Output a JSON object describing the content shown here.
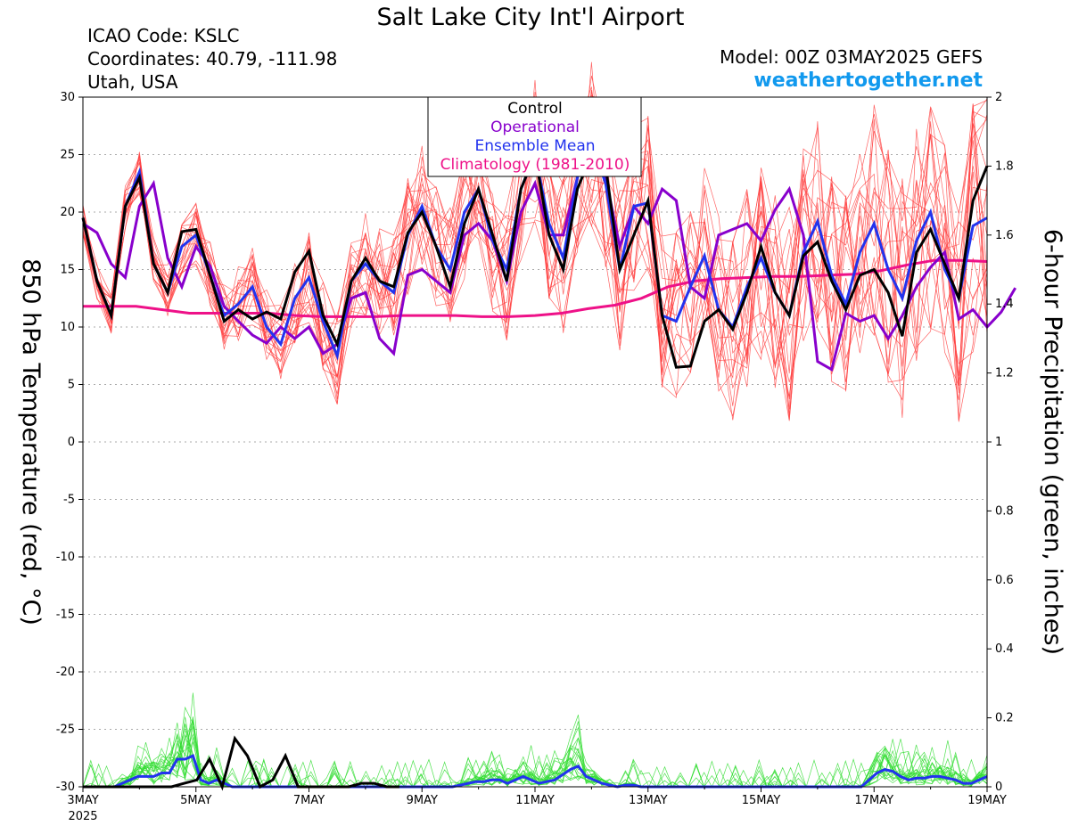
{
  "chart_data": {
    "type": "line",
    "title": "Salt Lake City Int'l Airport",
    "info": {
      "icao": "ICAO Code: KSLC",
      "coordinates": "Coordinates: 40.79, -111.98",
      "region": "Utah, USA",
      "model": "Model: 00Z 03MAY2025 GEFS",
      "site": "weathertogether.net"
    },
    "colors": {
      "members_temp": "#ff3b3b",
      "members_precip": "#33dd33",
      "control": "#000000",
      "operational": "#8800cc",
      "ensemble_mean": "#2233ee",
      "climatology": "#ee1188",
      "site": "#1199ee"
    },
    "y_left": {
      "label": "850 hPa Temperature (red, °C)",
      "range": [
        -30,
        30
      ],
      "ticks": [
        "30",
        "25",
        "20",
        "15",
        "10",
        "5",
        "0",
        "-5",
        "-10",
        "-15",
        "-20",
        "-25",
        "-30"
      ]
    },
    "y_right": {
      "label": "6-hour Precipitation (green, inches)",
      "range": [
        0,
        2
      ],
      "ticks": [
        "2",
        "1.8",
        "1.6",
        "1.4",
        "1.2",
        "1",
        "0.8",
        "0.6",
        "0.4",
        "0.2",
        "0"
      ]
    },
    "x_axis": {
      "range_days": [
        0,
        16
      ],
      "year_label": "2025",
      "ticks": [
        {
          "day": 0,
          "label": "3MAY"
        },
        {
          "day": 2,
          "label": "5MAY"
        },
        {
          "day": 4,
          "label": "7MAY"
        },
        {
          "day": 6,
          "label": "9MAY"
        },
        {
          "day": 8,
          "label": "11MAY"
        },
        {
          "day": 10,
          "label": "13MAY"
        },
        {
          "day": 12,
          "label": "15MAY"
        },
        {
          "day": 14,
          "label": "17MAY"
        },
        {
          "day": 16,
          "label": "19MAY"
        }
      ]
    },
    "legend": {
      "placement": "top-center",
      "entries": [
        "Control",
        "Operational",
        "Ensemble Mean",
        "Climatology (1981-2010)"
      ]
    },
    "grid": "horizontal dotted",
    "series_temp": {
      "step_hours": 6,
      "control": [
        19.5,
        14,
        11,
        20.5,
        23,
        15.5,
        13,
        18.3,
        18.5,
        14.5,
        10.5,
        11.5,
        10.7,
        11.3,
        10.7,
        14.8,
        16.6,
        11,
        8.5,
        14,
        16,
        14,
        13.5,
        18.2,
        20,
        17,
        13.5,
        19,
        22,
        18,
        14,
        22,
        25,
        18,
        15,
        22,
        25,
        24,
        15,
        18,
        21,
        11,
        6.5,
        6.6,
        10.5,
        11.5,
        9.8,
        13,
        17,
        13,
        11,
        16.2,
        17.4,
        14,
        11.5,
        14.5,
        15,
        13,
        9.2,
        16.5,
        18.5,
        15.5,
        12.5,
        21,
        24
      ],
      "operational": [
        19,
        18.2,
        15.5,
        14.3,
        20.5,
        22.5,
        16,
        13.5,
        17,
        15.3,
        11.8,
        10.5,
        9.3,
        8.6,
        10,
        9,
        10,
        7.7,
        8.5,
        12.5,
        13,
        9,
        7.7,
        14.5,
        15,
        14,
        13,
        18,
        19,
        17.5,
        14,
        20,
        22.5,
        18,
        18,
        23,
        26.5,
        23,
        17,
        20.5,
        19,
        22,
        21,
        13.5,
        12.5,
        18,
        18.5,
        19,
        17.5,
        20.2,
        22,
        18,
        7,
        6.3,
        11.2,
        10.5,
        11,
        9,
        11,
        13.5,
        15.2,
        16.5,
        10.7,
        11.5,
        10,
        11.3,
        13.4
      ],
      "ensemble_mean": [
        19.5,
        14,
        11,
        20.5,
        23.5,
        15.5,
        13,
        17,
        18,
        14.5,
        11,
        12,
        13.5,
        10,
        8.5,
        12.5,
        14.3,
        10.5,
        7.5,
        14,
        15.5,
        14,
        13,
        18,
        20.5,
        17,
        15,
        20,
        22,
        17.5,
        15,
        22,
        25,
        19,
        16,
        23,
        26,
        22.5,
        15,
        20.5,
        20.8,
        11,
        10.5,
        13.5,
        16.2,
        11.5,
        10,
        13.5,
        16,
        13,
        11,
        16.5,
        19.2,
        14.5,
        12,
        16.5,
        19,
        15,
        12.5,
        17.5,
        20,
        15,
        12.5,
        18.8,
        19.5
      ],
      "climatology": [
        11.8,
        11.8,
        11.8,
        11.5,
        11.2,
        11.2,
        11.2,
        11.2,
        11.0,
        10.9,
        10.9,
        10.9,
        11.0,
        11.0,
        11.0,
        10.9,
        10.9,
        11.0,
        11.2,
        11.6,
        11.9,
        12.5,
        13.5,
        14.0,
        14.2,
        14.3,
        14.4,
        14.4,
        14.5,
        14.6,
        14.9,
        15.4,
        15.8,
        15.8,
        15.7
      ]
    },
    "series_precip": {
      "control": [
        0,
        0,
        0,
        0,
        0,
        0,
        0,
        0,
        0.01,
        0.02,
        0.08,
        0,
        0.14,
        0.09,
        0,
        0.02,
        0.09,
        0,
        0,
        0,
        0,
        0,
        0.01,
        0.01,
        0,
        0
      ],
      "ensemble_mean": [
        0,
        0,
        0,
        0,
        0,
        0.01,
        0.02,
        0.03,
        0.03,
        0.03,
        0.04,
        0.04,
        0.08,
        0.08,
        0.09,
        0.02,
        0.01,
        0.02,
        0.01,
        0,
        0,
        0,
        0,
        0,
        0,
        0,
        0,
        0,
        0,
        0,
        0,
        0,
        0,
        0,
        0,
        0,
        0,
        0,
        0,
        0,
        0,
        0,
        0,
        0,
        0,
        0,
        0,
        0,
        0.005,
        0.01,
        0.015,
        0.015,
        0.02,
        0.02,
        0.01,
        0.02,
        0.03,
        0.02,
        0.01,
        0.015,
        0.02,
        0.035,
        0.05,
        0.06,
        0.03,
        0.02,
        0.01,
        0.005,
        0,
        0.005,
        0.005,
        0,
        0,
        0,
        0,
        0,
        0,
        0,
        0,
        0,
        0,
        0,
        0,
        0,
        0,
        0,
        0,
        0,
        0,
        0,
        0,
        0,
        0,
        0,
        0,
        0,
        0,
        0,
        0,
        0,
        0.02,
        0.04,
        0.05,
        0.045,
        0.03,
        0.02,
        0.025,
        0.025,
        0.03,
        0.03,
        0.025,
        0.02,
        0.01,
        0.01,
        0.02,
        0.03
      ]
    }
  }
}
